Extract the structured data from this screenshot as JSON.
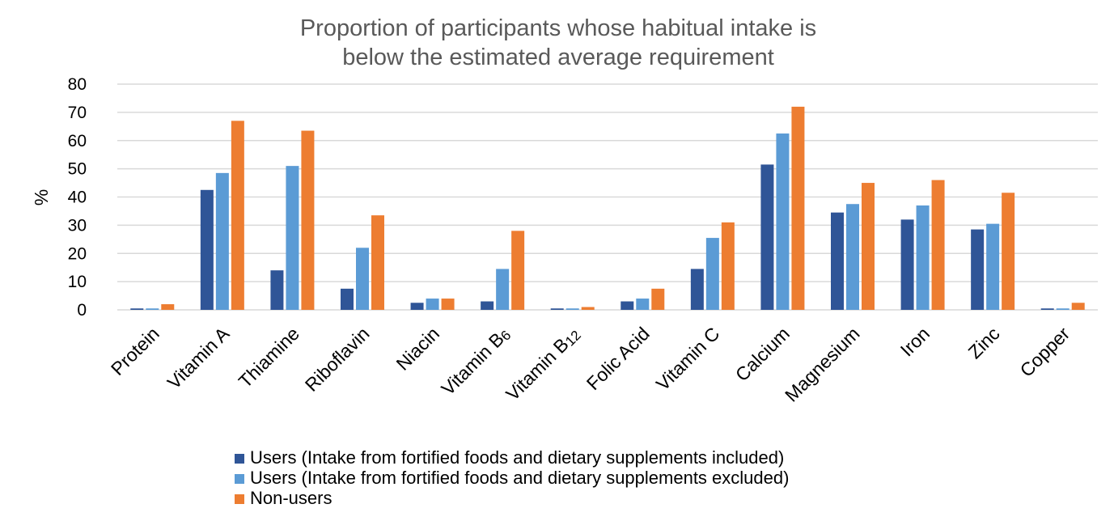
{
  "chart_data": {
    "type": "bar",
    "title": "Proportion of participants whose habitual intake is below the estimated average requirement",
    "title_lines": [
      "Proportion of participants whose habitual intake is",
      "below the estimated average requirement"
    ],
    "ylabel": "%",
    "xlabel": "",
    "ylim": [
      0,
      80
    ],
    "yticks": [
      0,
      10,
      20,
      30,
      40,
      50,
      60,
      70,
      80
    ],
    "grid": true,
    "legend_position": "bottom",
    "categories": [
      "Protein",
      "Vitamin A",
      "Thiamine",
      "Riboflavin",
      "Niacin",
      "Vitamin B6",
      "Vitamin B12",
      "Folic Acid",
      "Vitamin C",
      "Calcium",
      "Magnesium",
      "Iron",
      "Zinc",
      "Copper"
    ],
    "category_labels": [
      {
        "main": "Protein",
        "sub": ""
      },
      {
        "main": "Vitamin A",
        "sub": ""
      },
      {
        "main": "Thiamine",
        "sub": ""
      },
      {
        "main": "Riboflavin",
        "sub": ""
      },
      {
        "main": "Niacin",
        "sub": ""
      },
      {
        "main": "Vitamin B",
        "sub": "6"
      },
      {
        "main": "Vitamin B",
        "sub": "12"
      },
      {
        "main": "Folic Acid",
        "sub": ""
      },
      {
        "main": "Vitamin C",
        "sub": ""
      },
      {
        "main": "Calcium",
        "sub": ""
      },
      {
        "main": "Magnesium",
        "sub": ""
      },
      {
        "main": "Iron",
        "sub": ""
      },
      {
        "main": "Zinc",
        "sub": ""
      },
      {
        "main": "Copper",
        "sub": ""
      }
    ],
    "series": [
      {
        "name": "Users (Intake from fortified foods and dietary supplements included)",
        "color": "#2F5597",
        "values": [
          0.5,
          42.5,
          14,
          7.5,
          2.5,
          3,
          0.5,
          3,
          14.5,
          51.5,
          34.5,
          32,
          28.5,
          0.5
        ]
      },
      {
        "name": "Users (Intake from fortified foods and dietary supplements excluded)",
        "color": "#5B9BD5",
        "values": [
          0.5,
          48.5,
          51,
          22,
          4,
          14.5,
          0.5,
          4,
          25.5,
          62.5,
          37.5,
          37,
          30.5,
          0.5
        ]
      },
      {
        "name": "Non-users",
        "color": "#ED7D31",
        "values": [
          2,
          67,
          63.5,
          33.5,
          4,
          28,
          1,
          7.5,
          31,
          72,
          45,
          46,
          41.5,
          2.5
        ]
      }
    ]
  }
}
